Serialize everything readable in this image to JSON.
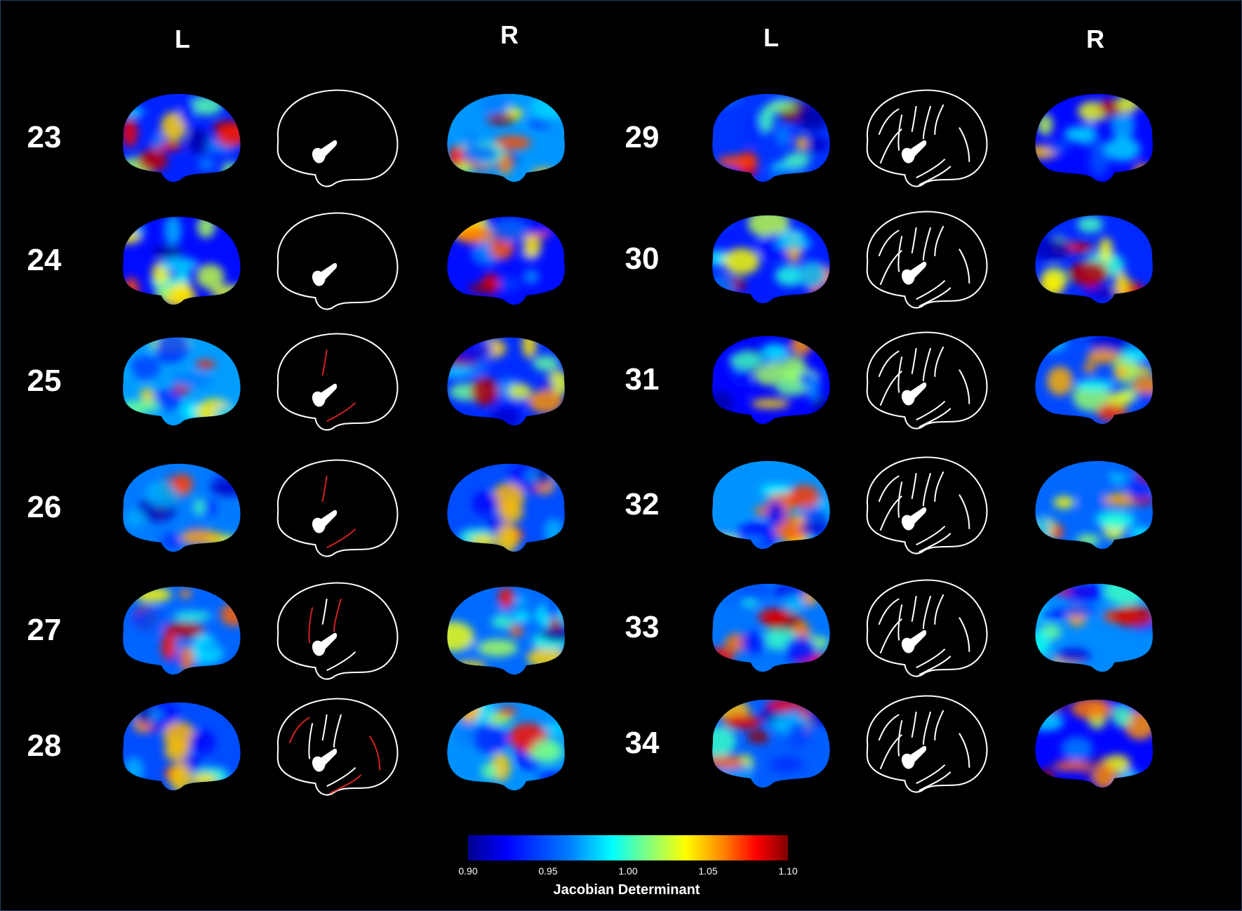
{
  "headers": {
    "left_l": "L",
    "left_r": "R",
    "right_l": "L",
    "right_r": "R"
  },
  "rows": [
    {
      "week": "23",
      "gyri": 0
    },
    {
      "week": "24",
      "gyri": 0
    },
    {
      "week": "25",
      "gyri": 1
    },
    {
      "week": "26",
      "gyri": 1
    },
    {
      "week": "27",
      "gyri": 2
    },
    {
      "week": "28",
      "gyri": 3
    },
    {
      "week": "29",
      "gyri": 4
    },
    {
      "week": "30",
      "gyri": 4
    },
    {
      "week": "31",
      "gyri": 4
    },
    {
      "week": "32",
      "gyri": 4
    },
    {
      "week": "33",
      "gyri": 4
    },
    {
      "week": "34",
      "gyri": 4
    }
  ],
  "colorbar": {
    "ticks": [
      "0.90",
      "0.95",
      "1.00",
      "1.05",
      "1.10"
    ],
    "title": "Jacobian Determinant",
    "colormap": "jet",
    "range": [
      0.9,
      1.1
    ]
  },
  "colors": {
    "background": "#000000",
    "outline": "#ffffff",
    "new_sulcus": "#cc2222"
  }
}
